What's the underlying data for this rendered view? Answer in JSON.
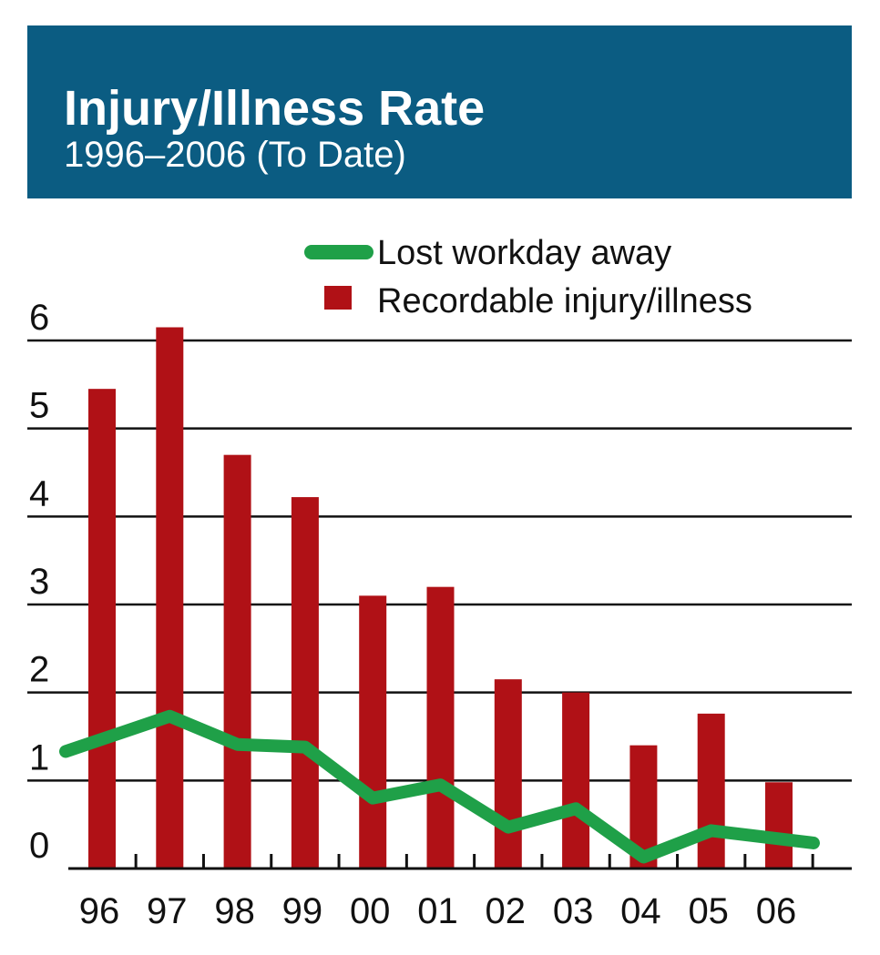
{
  "header": {
    "title": "Injury/Illness Rate",
    "subtitle": "1996–2006 (To Date)"
  },
  "legend": {
    "line_label": "Lost workday away",
    "bar_label": "Recordable injury/illness"
  },
  "colors": {
    "header_bg": "#0b5c82",
    "bar": "#b01116",
    "line": "#1fa048",
    "grid": "#111111"
  },
  "chart_data": {
    "type": "bar",
    "title": "Injury/Illness Rate",
    "subtitle": "1996–2006 (To Date)",
    "categories": [
      "96",
      "97",
      "98",
      "99",
      "00",
      "01",
      "02",
      "03",
      "04",
      "05",
      "06"
    ],
    "ylim": [
      0,
      6
    ],
    "yticks": [
      "0",
      "1",
      "2",
      "3",
      "4",
      "5",
      "6"
    ],
    "grid": true,
    "legend_position": "top-right",
    "series": [
      {
        "name": "Recordable injury/illness",
        "type": "bar",
        "values": [
          5.45,
          6.15,
          4.7,
          4.22,
          3.1,
          3.2,
          2.15,
          2.0,
          1.4,
          1.76,
          0.98
        ]
      },
      {
        "name": "Lost workday away",
        "type": "line",
        "values": [
          1.33,
          1.73,
          1.41,
          1.38,
          0.8,
          0.95,
          0.47,
          0.68,
          0.13,
          0.43,
          0.29
        ]
      }
    ]
  }
}
